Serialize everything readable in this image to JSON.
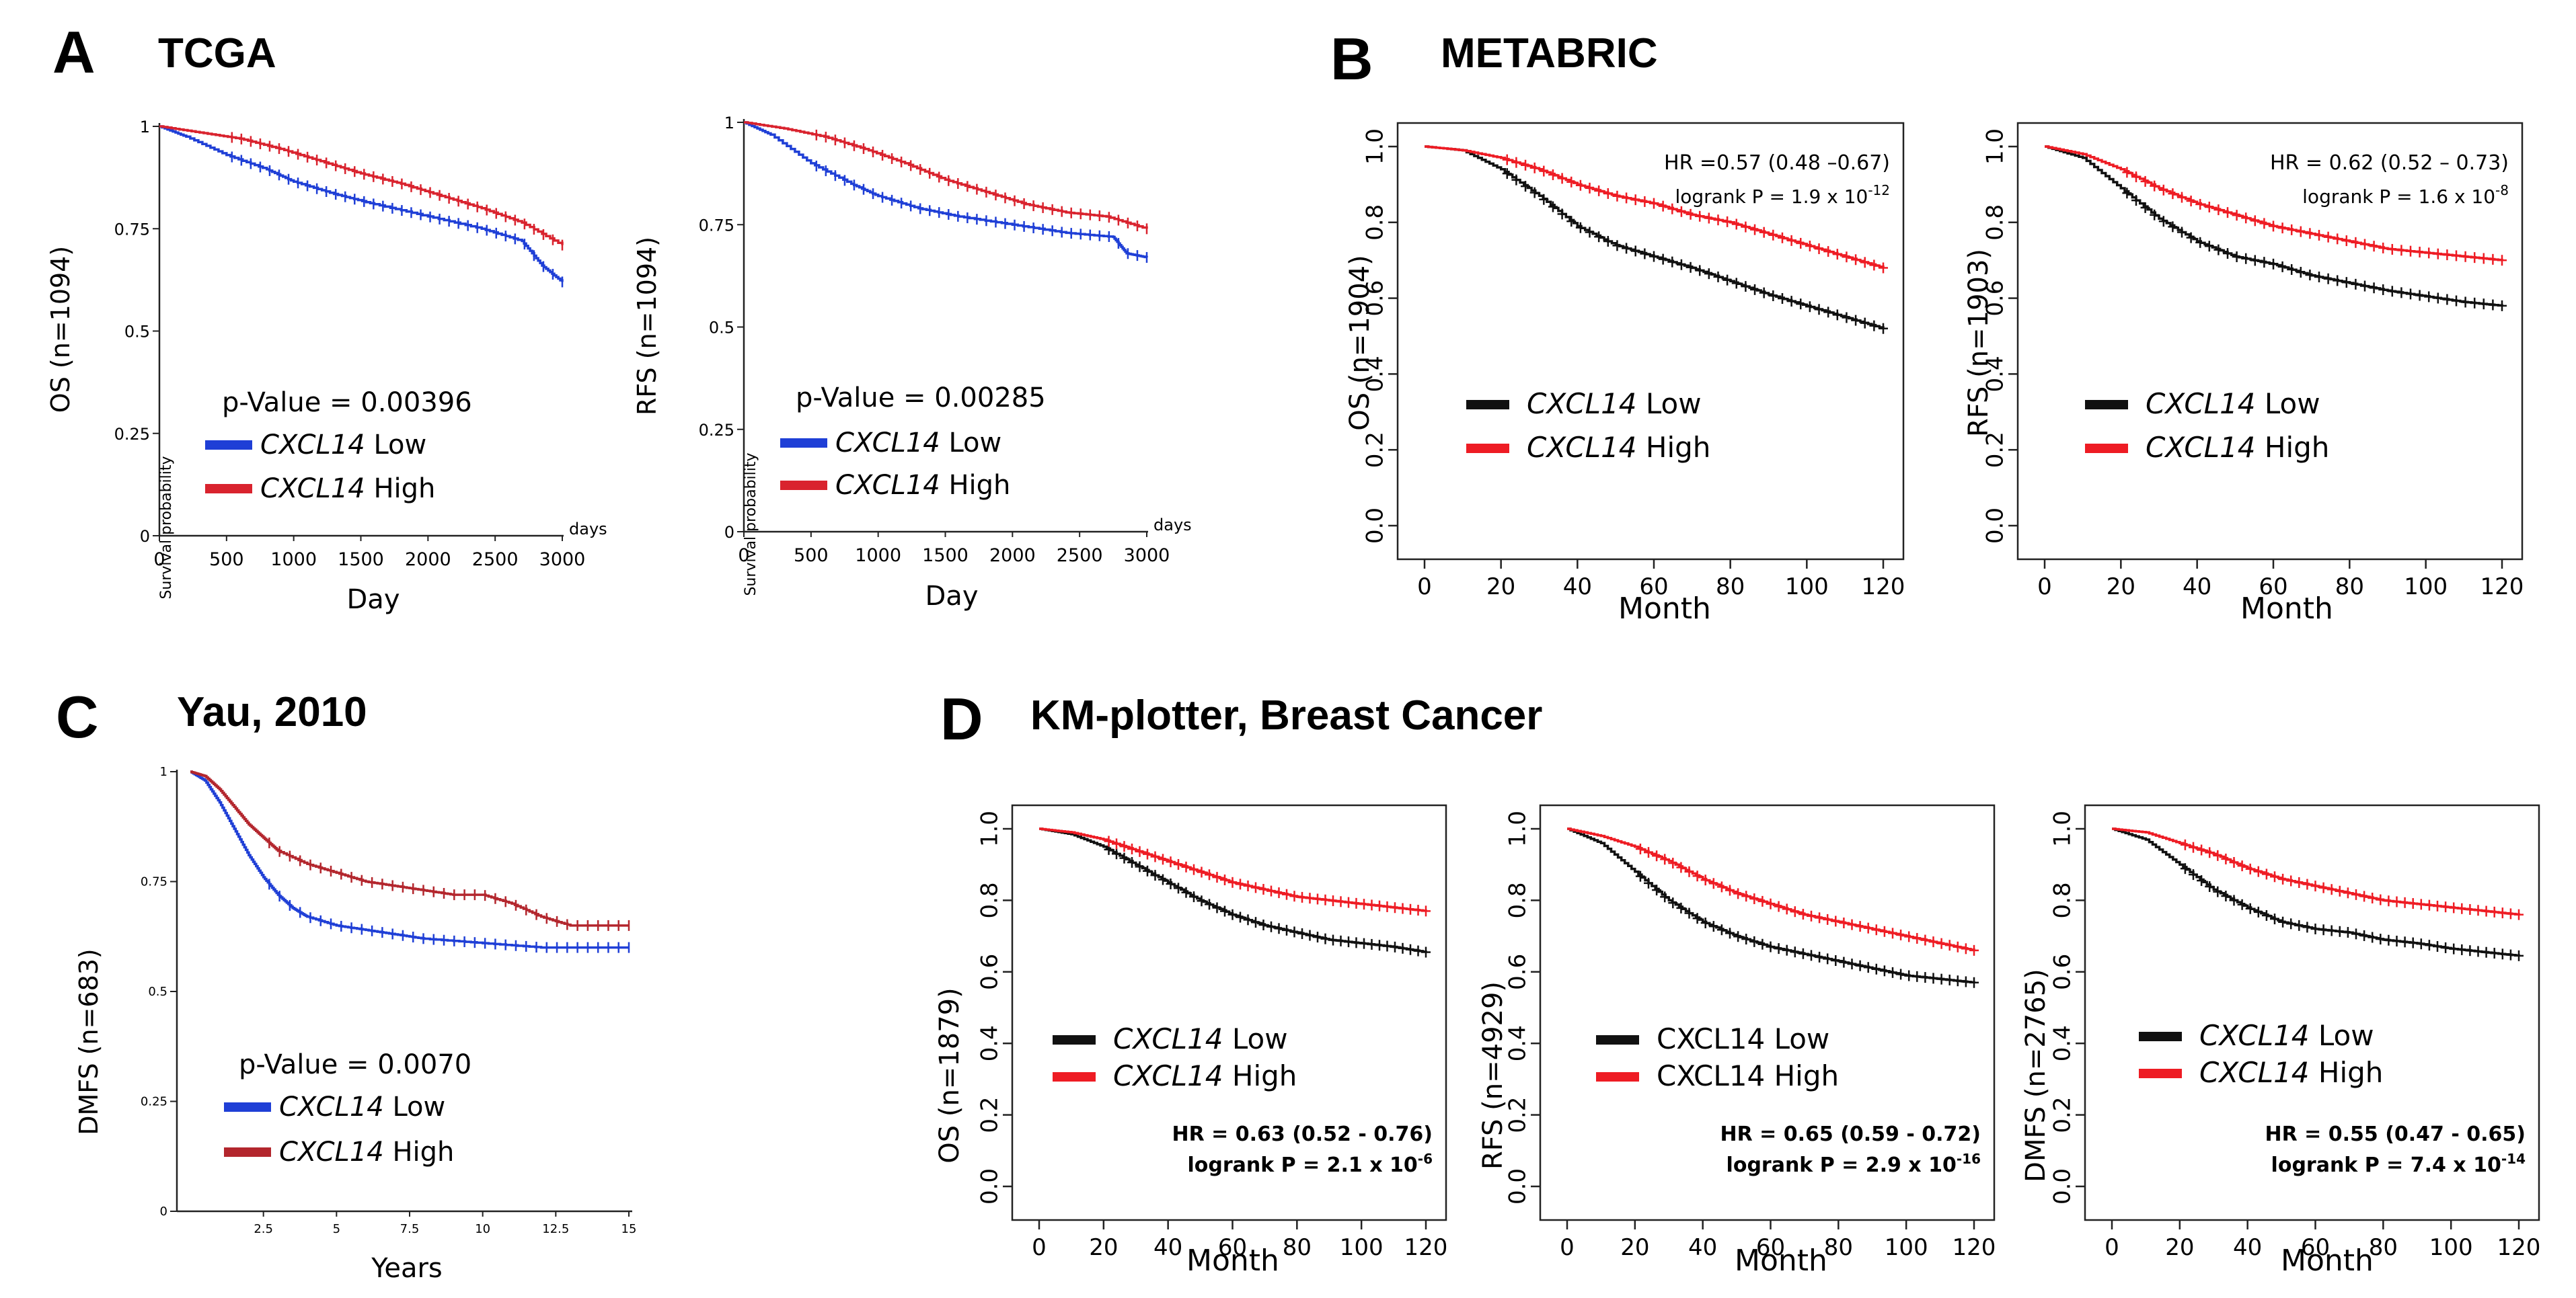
{
  "colors": {
    "blue": "#1f3fd6",
    "red_tcga": "#d9232e",
    "red_yau": "#b3262d",
    "black": "#111111",
    "red": "#ee1c24"
  },
  "chart_data": [
    {
      "id": "A1",
      "panel": "A",
      "title": "TCGA",
      "type": "line",
      "xlabel": "Day",
      "ylabel": "OS (n=1094)",
      "inner_ylabel": "Survival probability",
      "x_unit": "days",
      "xlim": [
        0,
        3000
      ],
      "ylim": [
        0,
        1
      ],
      "xticks": [
        "0",
        "500",
        "1000",
        "1500",
        "2000",
        "2500",
        "3000"
      ],
      "yticks": [
        "0",
        "0.25",
        "0.5",
        "0.75",
        "1"
      ],
      "pvalue": "p-Value = 0.00396",
      "series": [
        {
          "name": "CXCL14 Low",
          "gene": "CXCL14",
          "label": "Low",
          "color": "#1f3fd6",
          "x": [
            0,
            200,
            500,
            800,
            1000,
            1300,
            1600,
            2000,
            2400,
            2700,
            2850,
            3000
          ],
          "y": [
            1,
            0.975,
            0.93,
            0.895,
            0.865,
            0.835,
            0.81,
            0.78,
            0.75,
            0.72,
            0.66,
            0.62
          ]
        },
        {
          "name": "CXCL14 High",
          "gene": "CXCL14",
          "label": "High",
          "color": "#d9232e",
          "x": [
            0,
            300,
            600,
            900,
            1200,
            1500,
            1800,
            2100,
            2400,
            2700,
            3000
          ],
          "y": [
            1,
            0.985,
            0.97,
            0.945,
            0.915,
            0.885,
            0.86,
            0.83,
            0.8,
            0.765,
            0.71
          ]
        }
      ]
    },
    {
      "id": "A2",
      "panel": "A",
      "type": "line",
      "xlabel": "Day",
      "ylabel": "RFS (n=1094)",
      "inner_ylabel": "Survival probability",
      "x_unit": "days",
      "xlim": [
        0,
        3000
      ],
      "ylim": [
        0,
        1
      ],
      "xticks": [
        "0",
        "500",
        "1000",
        "1500",
        "2000",
        "2500",
        "3000"
      ],
      "yticks": [
        "0",
        "0.25",
        "0.5",
        "0.75",
        "1"
      ],
      "pvalue": "p-Value = 0.00285",
      "series": [
        {
          "name": "CXCL14 Low",
          "gene": "CXCL14",
          "label": "Low",
          "color": "#1f3fd6",
          "x": [
            0,
            200,
            500,
            800,
            1000,
            1300,
            1600,
            2000,
            2400,
            2750,
            2850,
            3000
          ],
          "y": [
            1,
            0.97,
            0.9,
            0.85,
            0.82,
            0.79,
            0.77,
            0.75,
            0.73,
            0.72,
            0.68,
            0.67
          ]
        },
        {
          "name": "CXCL14 High",
          "gene": "CXCL14",
          "label": "High",
          "color": "#d9232e",
          "x": [
            0,
            300,
            600,
            900,
            1200,
            1500,
            1800,
            2100,
            2400,
            2700,
            3000
          ],
          "y": [
            1,
            0.985,
            0.965,
            0.935,
            0.9,
            0.86,
            0.83,
            0.8,
            0.78,
            0.77,
            0.74
          ]
        }
      ]
    },
    {
      "id": "B1",
      "panel": "B",
      "title": "METABRIC",
      "type": "line",
      "xlabel": "Month",
      "ylabel": "OS (n=1904)",
      "xlim": [
        0,
        120
      ],
      "ylim": [
        0,
        1
      ],
      "xticks": [
        "0",
        "20",
        "40",
        "60",
        "80",
        "100",
        "120"
      ],
      "yticks": [
        "0.0",
        "0.2",
        "0.4",
        "0.6",
        "0.8",
        "1.0"
      ],
      "hr": "HR =0.57 (0.48 –0.67)",
      "logrank": "logrank P = 1.9 x 10",
      "logrank_exp": "-12",
      "series": [
        {
          "name": "CXCL14 Low",
          "gene": "CXCL14",
          "label": "Low",
          "color": "#111111",
          "x": [
            0,
            10,
            20,
            30,
            40,
            50,
            60,
            70,
            80,
            90,
            100,
            110,
            120
          ],
          "y": [
            1,
            0.99,
            0.94,
            0.87,
            0.79,
            0.74,
            0.71,
            0.68,
            0.645,
            0.61,
            0.58,
            0.55,
            0.52
          ]
        },
        {
          "name": "CXCL14 High",
          "gene": "CXCL14",
          "label": "High",
          "color": "#ee1c24",
          "x": [
            0,
            10,
            20,
            30,
            40,
            50,
            60,
            70,
            80,
            90,
            100,
            110,
            120
          ],
          "y": [
            1,
            0.99,
            0.97,
            0.94,
            0.9,
            0.87,
            0.85,
            0.82,
            0.8,
            0.77,
            0.74,
            0.71,
            0.68
          ]
        }
      ]
    },
    {
      "id": "B2",
      "panel": "B",
      "type": "line",
      "xlabel": "Month",
      "ylabel": "RFS (n=1903)",
      "xlim": [
        0,
        120
      ],
      "ylim": [
        0,
        1
      ],
      "xticks": [
        "0",
        "20",
        "40",
        "60",
        "80",
        "100",
        "120"
      ],
      "yticks": [
        "0.0",
        "0.2",
        "0.4",
        "0.6",
        "0.8",
        "1.0"
      ],
      "hr": "HR = 0.62 (0.52 – 0.73)",
      "logrank": "logrank P = 1.6 x 10",
      "logrank_exp": "-8",
      "series": [
        {
          "name": "CXCL14 Low",
          "gene": "CXCL14",
          "label": "Low",
          "color": "#111111",
          "x": [
            0,
            10,
            20,
            30,
            40,
            50,
            60,
            70,
            80,
            90,
            100,
            110,
            120
          ],
          "y": [
            1,
            0.97,
            0.89,
            0.81,
            0.75,
            0.71,
            0.69,
            0.66,
            0.64,
            0.62,
            0.605,
            0.59,
            0.58
          ]
        },
        {
          "name": "CXCL14 High",
          "gene": "CXCL14",
          "label": "High",
          "color": "#ee1c24",
          "x": [
            0,
            10,
            20,
            30,
            40,
            50,
            60,
            70,
            80,
            90,
            100,
            110,
            120
          ],
          "y": [
            1,
            0.98,
            0.94,
            0.89,
            0.85,
            0.82,
            0.79,
            0.77,
            0.75,
            0.73,
            0.72,
            0.71,
            0.7
          ]
        }
      ]
    },
    {
      "id": "C",
      "panel": "C",
      "title": "Yau, 2010",
      "type": "line",
      "xlabel": "Years",
      "ylabel": "DMFS (n=683)",
      "xlim": [
        0,
        15
      ],
      "ylim": [
        0,
        1
      ],
      "xticks": [
        "2.5",
        "5",
        "7.5",
        "10",
        "12.5",
        "15"
      ],
      "yticks": [
        "0",
        "0.25",
        "0.5",
        "0.75",
        "1"
      ],
      "pvalue": "p-Value = 0.0070",
      "series": [
        {
          "name": "CXCL14 Low",
          "gene": "CXCL14",
          "label": "Low",
          "color": "#1f3fd6",
          "x": [
            0,
            0.5,
            1,
            1.5,
            2,
            2.5,
            3,
            3.5,
            4,
            5,
            6,
            7,
            8,
            10,
            12,
            15
          ],
          "y": [
            1,
            0.98,
            0.93,
            0.87,
            0.81,
            0.76,
            0.72,
            0.69,
            0.67,
            0.65,
            0.64,
            0.63,
            0.62,
            0.61,
            0.6,
            0.6
          ]
        },
        {
          "name": "CXCL14 High",
          "gene": "CXCL14",
          "label": "High",
          "color": "#b3262d",
          "x": [
            0,
            0.5,
            1,
            1.5,
            2,
            2.5,
            3,
            4,
            5,
            6,
            7,
            8,
            9,
            10,
            11,
            12,
            13,
            15
          ],
          "y": [
            1,
            0.99,
            0.96,
            0.92,
            0.88,
            0.85,
            0.82,
            0.79,
            0.77,
            0.75,
            0.74,
            0.73,
            0.72,
            0.72,
            0.7,
            0.67,
            0.65,
            0.65
          ]
        }
      ]
    },
    {
      "id": "D1",
      "panel": "D",
      "title": "KM-plotter, Breast Cancer",
      "type": "line",
      "xlabel": "Month",
      "ylabel": "OS (n=1879)",
      "xlim": [
        0,
        120
      ],
      "ylim": [
        0,
        1
      ],
      "xticks": [
        "0",
        "20",
        "40",
        "60",
        "80",
        "100",
        "120"
      ],
      "yticks": [
        "0.0",
        "0.2",
        "0.4",
        "0.6",
        "0.8",
        "1.0"
      ],
      "hr": "HR = 0.63 (0.52 - 0.76)",
      "logrank": "logrank P = 2.1 x 10",
      "logrank_exp": "-6",
      "series": [
        {
          "name": "CXCL14 Low",
          "gene": "CXCL14",
          "label": "Low",
          "color": "#111111",
          "x": [
            0,
            10,
            20,
            30,
            40,
            50,
            60,
            70,
            80,
            90,
            100,
            110,
            120
          ],
          "y": [
            1,
            0.985,
            0.95,
            0.9,
            0.85,
            0.8,
            0.76,
            0.73,
            0.71,
            0.69,
            0.68,
            0.67,
            0.655
          ]
        },
        {
          "name": "CXCL14 High",
          "gene": "CXCL14",
          "label": "High",
          "color": "#ee1c24",
          "x": [
            0,
            10,
            20,
            30,
            40,
            50,
            60,
            70,
            80,
            90,
            100,
            110,
            120
          ],
          "y": [
            1,
            0.99,
            0.97,
            0.94,
            0.91,
            0.88,
            0.85,
            0.83,
            0.81,
            0.8,
            0.79,
            0.78,
            0.77
          ]
        }
      ]
    },
    {
      "id": "D2",
      "panel": "D",
      "type": "line",
      "xlabel": "Month",
      "ylabel": "RFS (n=4929)",
      "xlim": [
        0,
        120
      ],
      "ylim": [
        0,
        1
      ],
      "xticks": [
        "0",
        "20",
        "40",
        "60",
        "80",
        "100",
        "120"
      ],
      "yticks": [
        "0.0",
        "0.2",
        "0.4",
        "0.6",
        "0.8",
        "1.0"
      ],
      "hr": "HR = 0.65 (0.59 - 0.72)",
      "logrank": "logrank P = 2.9 x 10",
      "logrank_exp": "-16",
      "legend_italic": false,
      "series": [
        {
          "name": "CXCL14 Low",
          "gene": "CXCL14",
          "label": "Low",
          "color": "#111111",
          "x": [
            0,
            10,
            20,
            30,
            40,
            50,
            60,
            70,
            80,
            90,
            100,
            110,
            120
          ],
          "y": [
            1,
            0.96,
            0.88,
            0.8,
            0.74,
            0.7,
            0.67,
            0.65,
            0.63,
            0.61,
            0.59,
            0.58,
            0.57
          ]
        },
        {
          "name": "CXCL14 High",
          "gene": "CXCL14",
          "label": "High",
          "color": "#ee1c24",
          "x": [
            0,
            10,
            20,
            30,
            40,
            50,
            60,
            70,
            80,
            90,
            100,
            110,
            120
          ],
          "y": [
            1,
            0.98,
            0.95,
            0.91,
            0.86,
            0.82,
            0.79,
            0.76,
            0.74,
            0.72,
            0.7,
            0.68,
            0.66
          ]
        }
      ]
    },
    {
      "id": "D3",
      "panel": "D",
      "type": "line",
      "xlabel": "Month",
      "ylabel": "DMFS (n=2765)",
      "xlim": [
        0,
        120
      ],
      "ylim": [
        0,
        1
      ],
      "xticks": [
        "0",
        "20",
        "40",
        "60",
        "80",
        "100",
        "120"
      ],
      "yticks": [
        "0.0",
        "0.2",
        "0.4",
        "0.6",
        "0.8",
        "1.0"
      ],
      "hr": "HR = 0.55 (0.47 - 0.65)",
      "logrank": "logrank P = 7.4 x 10",
      "logrank_exp": "-14",
      "series": [
        {
          "name": "CXCL14 Low",
          "gene": "CXCL14",
          "label": "Low",
          "color": "#111111",
          "x": [
            0,
            10,
            20,
            30,
            40,
            50,
            60,
            70,
            80,
            90,
            100,
            110,
            120
          ],
          "y": [
            1,
            0.97,
            0.9,
            0.83,
            0.78,
            0.74,
            0.72,
            0.71,
            0.69,
            0.68,
            0.665,
            0.655,
            0.645
          ]
        },
        {
          "name": "CXCL14 High",
          "gene": "CXCL14",
          "label": "High",
          "color": "#ee1c24",
          "x": [
            0,
            10,
            20,
            30,
            40,
            50,
            60,
            70,
            80,
            90,
            100,
            110,
            120
          ],
          "y": [
            1,
            0.99,
            0.96,
            0.93,
            0.89,
            0.86,
            0.84,
            0.82,
            0.8,
            0.79,
            0.78,
            0.77,
            0.76
          ]
        }
      ]
    }
  ],
  "panels": {
    "A": {
      "letter": "A",
      "title": "TCGA"
    },
    "B": {
      "letter": "B",
      "title": "METABRIC"
    },
    "C": {
      "letter": "C",
      "title": "Yau, 2010"
    },
    "D": {
      "letter": "D",
      "title": "KM-plotter, Breast Cancer"
    }
  }
}
